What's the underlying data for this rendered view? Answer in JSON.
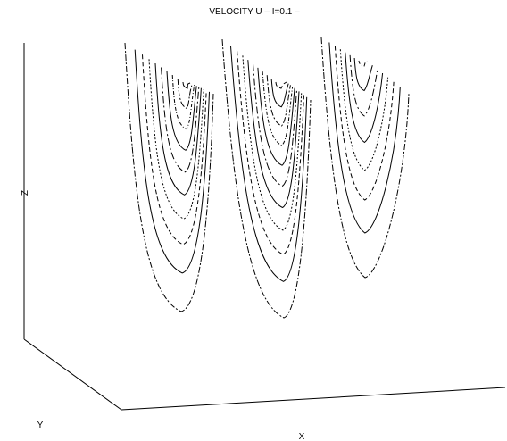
{
  "chart_data": {
    "type": "line",
    "title": "VELOCITY U  –  I=0.1 –",
    "xlabel": "X",
    "ylabel": "Y",
    "zlabel": "Z",
    "grid": false,
    "legend": "none",
    "projection": "3d-perspective",
    "plot_kind": "contour-slices",
    "slices": [
      {
        "id": "slice-1",
        "contour_levels": 10
      },
      {
        "id": "slice-2",
        "contour_levels": 11
      },
      {
        "id": "slice-3",
        "contour_levels": 8
      }
    ]
  }
}
